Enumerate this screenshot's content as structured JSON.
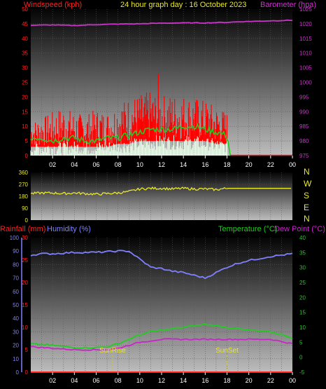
{
  "colors": {
    "background": "#000000",
    "wind": "#ff2020",
    "gust": "#ff0000",
    "avg_wind": "#22cc22",
    "wind_low": "#e8ffe8",
    "barometer": "#cc33cc",
    "direction": "#e8e82a",
    "rain": "#ff2020",
    "humidity": "#8080ff",
    "temperature": "#22cc22",
    "dewpoint": "#cc22cc",
    "sun_marker": "#c8c840",
    "x_tick": "#ffffff"
  },
  "header": {
    "windspeed_label": "Windspeed (kph)",
    "title": "24 hour graph day : 16 October 2023",
    "barometer_label": "Barometer (hpa)"
  },
  "bottom_header": {
    "rainfall_label": "Rainfall (mm)",
    "humidity_label": "Humidity (%)",
    "temperature_label": "Temperature (°C)",
    "dewpoint_label": "Dew Point (°C)"
  },
  "compass": [
    "N",
    "W",
    "S",
    "E",
    "N"
  ],
  "sun": {
    "sunrise_label": "SunRise",
    "sunset_label": "SunSet",
    "sunrise_hour": 7.5,
    "sunset_hour": 18.0
  },
  "chart_data": [
    {
      "type": "line",
      "name": "wind_barometer",
      "x_ticks": [
        "02",
        "04",
        "06",
        "08",
        "10",
        "12",
        "14",
        "16",
        "18",
        "20",
        "22",
        "00"
      ],
      "x_range_hours": [
        0,
        24
      ],
      "y_left": {
        "label": "Windspeed (kph)",
        "ticks": [
          "0",
          "5",
          "10",
          "15",
          "20",
          "25",
          "30",
          "35",
          "40",
          "45",
          "50"
        ],
        "ylim": [
          0,
          50
        ]
      },
      "y_right": {
        "label": "Barometer (hpa)",
        "ticks": [
          "975",
          "980",
          "985",
          "990",
          "995",
          "1000",
          "1005",
          "1010",
          "1015",
          "1020",
          "1025"
        ],
        "ylim": [
          975,
          1025
        ]
      },
      "series": [
        {
          "key": "gust",
          "axis": "left",
          "style": "spiky",
          "x": [
            0,
            1,
            2,
            3,
            4,
            5,
            6,
            7,
            8,
            9,
            10,
            11,
            12,
            13,
            14,
            15,
            16,
            17,
            18,
            18.3
          ],
          "low": [
            3,
            3,
            3,
            3,
            3,
            3,
            3,
            3,
            4,
            4,
            5,
            5,
            5,
            5,
            5,
            5,
            5,
            4,
            4,
            0
          ],
          "high": [
            12,
            13,
            15,
            17,
            15,
            14,
            16,
            15,
            18,
            20,
            21,
            22,
            21,
            21,
            21,
            20,
            19,
            17,
            15,
            0
          ],
          "peak": {
            "x": 11.7,
            "y": 28
          }
        },
        {
          "key": "avg_wind",
          "axis": "left",
          "x": [
            0,
            1,
            2,
            3,
            4,
            5,
            6,
            7,
            8,
            9,
            10,
            11,
            12,
            13,
            14,
            15,
            16,
            17,
            18,
            18.3
          ],
          "y": [
            6,
            6,
            5,
            6,
            6,
            5,
            5,
            6,
            6,
            7,
            8,
            9,
            9,
            9,
            10,
            10,
            9,
            8,
            7,
            0
          ]
        },
        {
          "key": "wind_low",
          "axis": "left",
          "style": "spiky",
          "x": [
            0,
            1,
            2,
            3,
            4,
            5,
            6,
            7,
            8,
            9,
            10,
            11,
            12,
            13,
            14,
            15,
            16,
            17,
            18,
            18.3
          ],
          "low": [
            0,
            0,
            0,
            0,
            1,
            0,
            0,
            1,
            1,
            1,
            2,
            2,
            2,
            2,
            2,
            2,
            2,
            1,
            1,
            0
          ],
          "high": [
            5,
            5,
            5,
            5,
            5,
            5,
            5,
            5,
            5,
            6,
            6,
            7,
            7,
            7,
            7,
            7,
            6,
            6,
            5,
            0
          ]
        },
        {
          "key": "barometer",
          "axis": "right",
          "x": [
            0,
            2,
            4,
            6,
            8,
            10,
            12,
            14,
            16,
            18,
            20,
            22,
            24
          ],
          "y": [
            1019.5,
            1019.6,
            1019.4,
            1019.7,
            1019.9,
            1020.0,
            1020.2,
            1020.3,
            1020.3,
            1020.5,
            1020.8,
            1021.0,
            1021.2
          ]
        }
      ]
    },
    {
      "type": "line",
      "name": "wind_direction",
      "x_range_hours": [
        0,
        24
      ],
      "y": {
        "ticks": [
          "0",
          "90",
          "180",
          "270",
          "360"
        ],
        "ylim": [
          0,
          360
        ]
      },
      "series": [
        {
          "key": "direction",
          "x": [
            0,
            1,
            2,
            3,
            4,
            5,
            6,
            7,
            8,
            9,
            10,
            11,
            12,
            13,
            14,
            15,
            16,
            17,
            18,
            24
          ],
          "y": [
            200,
            205,
            205,
            200,
            205,
            200,
            195,
            200,
            205,
            215,
            235,
            240,
            240,
            235,
            240,
            235,
            235,
            230,
            240,
            240
          ]
        }
      ]
    },
    {
      "type": "line",
      "name": "rain_humidity_temperature",
      "x_ticks": [
        "02",
        "04",
        "06",
        "08",
        "10",
        "12",
        "14",
        "16",
        "18",
        "20",
        "22",
        "00"
      ],
      "x_range_hours": [
        0,
        24
      ],
      "y_humidity": {
        "label": "Humidity (%)",
        "ticks": [
          "0",
          "10",
          "20",
          "30",
          "40",
          "50",
          "60",
          "70",
          "80",
          "90",
          "100"
        ],
        "ylim": [
          0,
          100
        ]
      },
      "y_rain": {
        "label": "Rainfall (mm)",
        "ticks": [
          "0",
          "5",
          "10",
          "15",
          "20",
          "25",
          "30"
        ],
        "ylim": [
          0,
          30
        ]
      },
      "y_temp": {
        "label": "Temperature (°C)",
        "ticks": [
          "-5",
          "0",
          "5",
          "10",
          "15",
          "20",
          "25",
          "30",
          "35",
          "40"
        ],
        "ylim": [
          -5,
          40
        ]
      },
      "series": [
        {
          "key": "humidity",
          "axis": "humidity",
          "x": [
            0,
            1,
            2,
            4,
            6,
            8,
            9,
            10,
            11,
            12,
            13,
            14,
            15,
            16,
            17,
            18,
            19,
            20,
            22,
            24
          ],
          "y": [
            87,
            88,
            88,
            89,
            89,
            90,
            90,
            84,
            78,
            77,
            75,
            74,
            72,
            70,
            74,
            78,
            81,
            83,
            86,
            88
          ]
        },
        {
          "key": "temperature",
          "axis": "temp",
          "x": [
            0,
            2,
            4,
            6,
            7,
            8,
            9,
            10,
            11,
            12,
            13,
            14,
            15,
            16,
            17,
            18,
            19,
            20,
            22,
            24
          ],
          "y": [
            4.5,
            4.0,
            3.2,
            3.2,
            3.5,
            4.5,
            6.0,
            7.5,
            8.5,
            9.0,
            9.5,
            10.0,
            10.5,
            11.0,
            10.5,
            10.0,
            9.5,
            9.0,
            8.5,
            6.5
          ]
        },
        {
          "key": "dewpoint",
          "axis": "temp",
          "x": [
            0,
            2,
            4,
            6,
            7,
            8,
            9,
            10,
            11,
            12,
            14,
            16,
            18,
            20,
            22,
            24
          ],
          "y": [
            3.5,
            3.0,
            2.5,
            2.5,
            2.5,
            3.0,
            4.0,
            5.0,
            5.5,
            6.0,
            6.0,
            6.0,
            6.0,
            6.0,
            6.0,
            4.5
          ]
        },
        {
          "key": "rain",
          "axis": "rain",
          "x": [
            0,
            24
          ],
          "y": [
            0,
            0
          ]
        }
      ]
    }
  ]
}
